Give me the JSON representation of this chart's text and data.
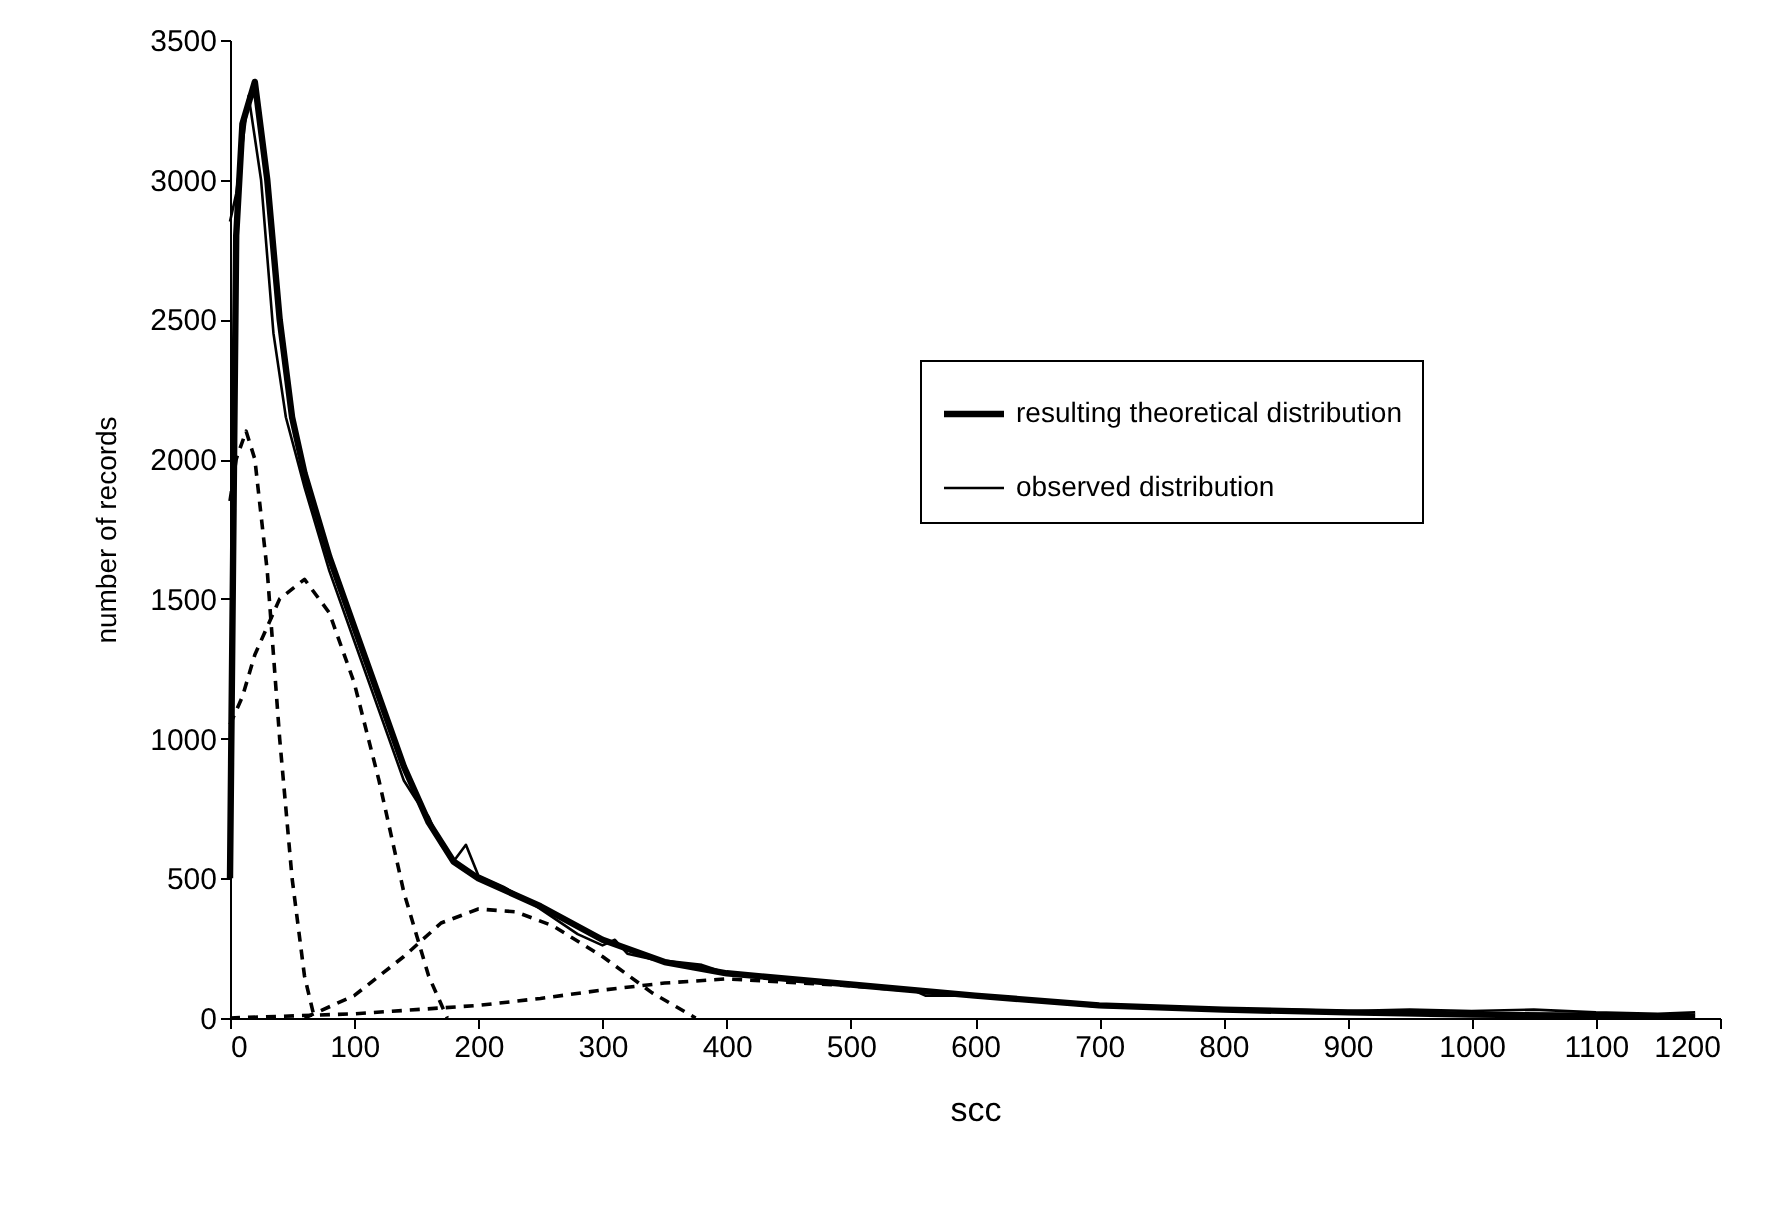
{
  "chart_data": {
    "type": "line",
    "xlabel": "scc",
    "ylabel": "number of records",
    "xlim": [
      0,
      1200
    ],
    "ylim": [
      0,
      3500
    ],
    "xticks": [
      0,
      100,
      200,
      300,
      400,
      500,
      600,
      700,
      800,
      900,
      1000,
      1100,
      1200
    ],
    "yticks": [
      0,
      500,
      1000,
      1500,
      2000,
      2500,
      3000,
      3500
    ],
    "grid": false,
    "legend": "top right",
    "marker": "none",
    "series": [
      {
        "name": "resulting theoretical distribution",
        "color": "#000000",
        "line_style": "solid",
        "x": [
          0,
          5,
          10,
          20,
          30,
          40,
          50,
          60,
          80,
          100,
          120,
          140,
          160,
          180,
          200,
          250,
          300,
          350,
          400,
          500,
          600,
          700,
          800,
          900,
          1000,
          1100,
          1180
        ],
        "values": [
          500,
          2800,
          3200,
          3350,
          3000,
          2500,
          2150,
          1950,
          1650,
          1400,
          1150,
          900,
          700,
          560,
          500,
          400,
          280,
          200,
          160,
          120,
          80,
          45,
          30,
          20,
          12,
          8,
          5
        ]
      },
      {
        "name": "observed distribution",
        "color": "#000000",
        "line_style": "solid",
        "x": [
          0,
          5,
          15,
          25,
          35,
          45,
          60,
          80,
          100,
          120,
          140,
          150,
          160,
          170,
          180,
          190,
          200,
          220,
          240,
          260,
          280,
          300,
          310,
          320,
          340,
          360,
          380,
          400,
          450,
          500,
          550,
          560,
          600,
          650,
          700,
          750,
          800,
          850,
          900,
          950,
          1000,
          1050,
          1100,
          1150,
          1180
        ],
        "values": [
          2850,
          2950,
          3300,
          3000,
          2450,
          2150,
          1900,
          1600,
          1350,
          1100,
          850,
          780,
          720,
          620,
          560,
          620,
          510,
          470,
          420,
          360,
          300,
          260,
          280,
          230,
          210,
          200,
          190,
          160,
          140,
          120,
          100,
          80,
          80,
          60,
          40,
          35,
          30,
          30,
          25,
          30,
          25,
          30,
          20,
          15,
          20
        ]
      },
      {
        "color": "#000000",
        "line_style": "dashed",
        "x": [
          0,
          5,
          13,
          20,
          30,
          40,
          50,
          60,
          68
        ],
        "values": [
          1850,
          2000,
          2100,
          2000,
          1600,
          1000,
          500,
          150,
          0
        ]
      },
      {
        "color": "#000000",
        "line_style": "dashed",
        "x": [
          0,
          10,
          20,
          40,
          60,
          80,
          100,
          120,
          140,
          160,
          175
        ],
        "values": [
          1050,
          1150,
          1300,
          1500,
          1570,
          1450,
          1200,
          850,
          450,
          150,
          0
        ]
      },
      {
        "color": "#000000",
        "line_style": "dashed",
        "x": [
          60,
          100,
          140,
          170,
          200,
          230,
          260,
          300,
          340,
          375
        ],
        "values": [
          0,
          80,
          220,
          340,
          390,
          380,
          330,
          220,
          90,
          0
        ]
      },
      {
        "color": "#000000",
        "line_style": "dashed",
        "x": [
          0,
          100,
          200,
          250,
          300,
          350,
          400,
          500,
          600,
          700,
          800,
          900,
          1000,
          1100,
          1180
        ],
        "values": [
          0,
          15,
          45,
          70,
          100,
          125,
          140,
          115,
          80,
          45,
          30,
          20,
          12,
          8,
          5
        ]
      }
    ]
  }
}
